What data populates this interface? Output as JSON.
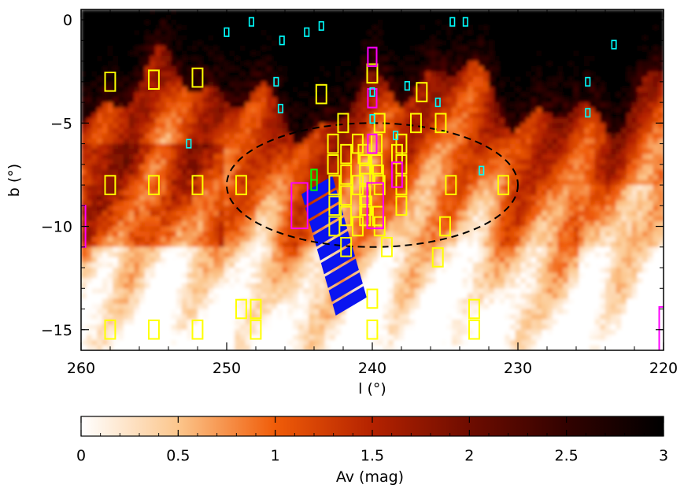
{
  "chart_data": {
    "type": "heatmap",
    "title": "",
    "xlabel": "l (°)",
    "ylabel": "b (°)",
    "xlim": [
      260,
      220
    ],
    "ylim": [
      -16,
      0.5
    ],
    "xticks": [
      {
        "value": 260,
        "label": "260"
      },
      {
        "value": 250,
        "label": "250"
      },
      {
        "value": 240,
        "label": "240"
      },
      {
        "value": 230,
        "label": "230"
      },
      {
        "value": 220,
        "label": "220"
      }
    ],
    "yticks": [
      {
        "value": 0,
        "label": "0"
      },
      {
        "value": -5,
        "label": "−5"
      },
      {
        "value": -10,
        "label": "−10"
      },
      {
        "value": -15,
        "label": "−15"
      }
    ],
    "colorbar": {
      "label": "Av (mag)",
      "range": [
        0,
        3
      ],
      "ticks": [
        {
          "value": 0,
          "label": "0"
        },
        {
          "value": 0.5,
          "label": "0.5"
        },
        {
          "value": 1,
          "label": "1"
        },
        {
          "value": 1.5,
          "label": "1.5"
        },
        {
          "value": 2,
          "label": "2"
        },
        {
          "value": 2.5,
          "label": "2.5"
        },
        {
          "value": 3,
          "label": "3"
        }
      ]
    },
    "colormap_stops": [
      {
        "v": 0.0,
        "color": "#ffffff"
      },
      {
        "v": 0.5,
        "color": "#fcc68c"
      },
      {
        "v": 1.0,
        "color": "#f05c08"
      },
      {
        "v": 1.5,
        "color": "#b42200"
      },
      {
        "v": 2.0,
        "color": "#6e0c00"
      },
      {
        "v": 2.5,
        "color": "#320200"
      },
      {
        "v": 3.0,
        "color": "#000000"
      }
    ],
    "ellipse": {
      "l_center": 240,
      "b_center": -8,
      "l_half_width": 10,
      "b_half_height": 3,
      "style": "dashed",
      "color": "#000000"
    },
    "fields": [
      {
        "name": "yellow",
        "color": "#ffff00",
        "size": [
          0.7,
          0.9
        ],
        "points": [
          [
            258,
            -3
          ],
          [
            255,
            -2.9
          ],
          [
            252,
            -2.8
          ],
          [
            243.5,
            -3.6
          ],
          [
            240,
            -2.6
          ],
          [
            236.6,
            -3.5
          ],
          [
            242,
            -5
          ],
          [
            239.5,
            -5
          ],
          [
            237,
            -5
          ],
          [
            235.3,
            -5
          ],
          [
            242.7,
            -6
          ],
          [
            241,
            -6
          ],
          [
            239.7,
            -6
          ],
          [
            238,
            -6
          ],
          [
            241.8,
            -6.5
          ],
          [
            240.6,
            -6.5
          ],
          [
            238.3,
            -6.5
          ],
          [
            240.5,
            -7
          ],
          [
            239.7,
            -7
          ],
          [
            242.7,
            -7
          ],
          [
            238,
            -7
          ],
          [
            241.8,
            -7.5
          ],
          [
            240.5,
            -7.5
          ],
          [
            239.6,
            -7.5
          ],
          [
            258,
            -8
          ],
          [
            255,
            -8
          ],
          [
            252,
            -8
          ],
          [
            249,
            -8
          ],
          [
            242.6,
            -8
          ],
          [
            241,
            -8
          ],
          [
            239.5,
            -8
          ],
          [
            238,
            -8
          ],
          [
            234.6,
            -8
          ],
          [
            231,
            -8
          ],
          [
            241.8,
            -8.5
          ],
          [
            240.5,
            -8.5
          ],
          [
            240.4,
            -9
          ],
          [
            242.6,
            -9
          ],
          [
            238,
            -9
          ],
          [
            241.8,
            -9.5
          ],
          [
            240.5,
            -9.5
          ],
          [
            239.6,
            -9.5
          ],
          [
            242.6,
            -10
          ],
          [
            241,
            -10
          ],
          [
            239.5,
            -10
          ],
          [
            235,
            -10
          ],
          [
            241.8,
            -11
          ],
          [
            239,
            -11
          ],
          [
            235.5,
            -11.5
          ],
          [
            240,
            -13.5
          ],
          [
            249,
            -14
          ],
          [
            248,
            -14
          ],
          [
            233,
            -14
          ],
          [
            258,
            -15
          ],
          [
            255,
            -15
          ],
          [
            252,
            -15
          ],
          [
            248,
            -15
          ],
          [
            240,
            -15
          ],
          [
            233,
            -15
          ]
        ]
      },
      {
        "name": "magenta",
        "color": "#ff00ff",
        "points": [
          [
            240,
            -1.8,
            0.6,
            0.9
          ],
          [
            240,
            -3.8,
            0.6,
            0.9
          ],
          [
            240,
            -6,
            0.6,
            0.9
          ],
          [
            238.3,
            -7.5,
            0.7,
            1.2
          ],
          [
            245,
            -9,
            1.1,
            2.2
          ],
          [
            239.8,
            -9,
            1.1,
            2.2
          ],
          [
            260,
            -10,
            0.6,
            2
          ],
          [
            220,
            -15,
            0.6,
            2.2
          ]
        ]
      },
      {
        "name": "cyan",
        "color": "#00ffff",
        "size": [
          0.3,
          0.4
        ],
        "points": [
          [
            250,
            -0.6
          ],
          [
            248.3,
            -0.1
          ],
          [
            246.2,
            -1
          ],
          [
            244.5,
            -0.6
          ],
          [
            243.5,
            -0.3
          ],
          [
            234.5,
            -0.1
          ],
          [
            233.6,
            -0.1
          ],
          [
            223.4,
            -1.2
          ],
          [
            246.6,
            -3
          ],
          [
            240,
            -3.5
          ],
          [
            237.6,
            -3.2
          ],
          [
            235.5,
            -4
          ],
          [
            246.3,
            -4.3
          ],
          [
            240,
            -4.8
          ],
          [
            238.4,
            -5.6
          ],
          [
            252.6,
            -6
          ],
          [
            232.5,
            -7.3
          ],
          [
            225.2,
            -3
          ],
          [
            225.2,
            -4.5
          ]
        ]
      },
      {
        "name": "green",
        "color": "#00ff00",
        "size": [
          0.4,
          0.5
        ],
        "points": [
          [
            244,
            -7.5
          ],
          [
            244,
            -8
          ]
        ]
      }
    ],
    "blue_strips": [
      {
        "l_start": 243.8,
        "b_start": -8,
        "l_end": 241.4,
        "b_end": -14,
        "width_deg": 2.2
      }
    ]
  }
}
